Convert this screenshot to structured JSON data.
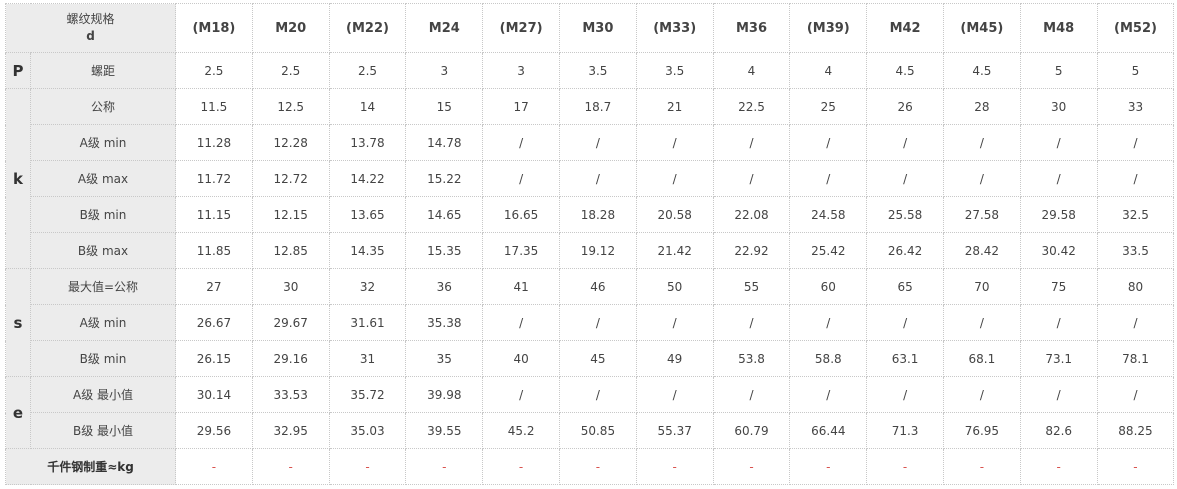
{
  "corner": {
    "line1": "螺纹规格",
    "line2": "d"
  },
  "sizes": [
    "(M18)",
    "M20",
    "(M22)",
    "M24",
    "(M27)",
    "M30",
    "(M33)",
    "M36",
    "(M39)",
    "M42",
    "(M45)",
    "M48",
    "(M52)"
  ],
  "groups": {
    "P": {
      "label": "P",
      "rows": [
        {
          "label": "螺距",
          "values": [
            "2.5",
            "2.5",
            "2.5",
            "3",
            "3",
            "3.5",
            "3.5",
            "4",
            "4",
            "4.5",
            "4.5",
            "5",
            "5"
          ]
        }
      ]
    },
    "k": {
      "label": "k",
      "rows": [
        {
          "label": "公称",
          "values": [
            "11.5",
            "12.5",
            "14",
            "15",
            "17",
            "18.7",
            "21",
            "22.5",
            "25",
            "26",
            "28",
            "30",
            "33"
          ]
        },
        {
          "label": "A级 min",
          "values": [
            "11.28",
            "12.28",
            "13.78",
            "14.78",
            "/",
            "/",
            "/",
            "/",
            "/",
            "/",
            "/",
            "/",
            "/"
          ]
        },
        {
          "label": "A级 max",
          "values": [
            "11.72",
            "12.72",
            "14.22",
            "15.22",
            "/",
            "/",
            "/",
            "/",
            "/",
            "/",
            "/",
            "/",
            "/"
          ]
        },
        {
          "label": "B级 min",
          "values": [
            "11.15",
            "12.15",
            "13.65",
            "14.65",
            "16.65",
            "18.28",
            "20.58",
            "22.08",
            "24.58",
            "25.58",
            "27.58",
            "29.58",
            "32.5"
          ]
        },
        {
          "label": "B级 max",
          "values": [
            "11.85",
            "12.85",
            "14.35",
            "15.35",
            "17.35",
            "19.12",
            "21.42",
            "22.92",
            "25.42",
            "26.42",
            "28.42",
            "30.42",
            "33.5"
          ]
        }
      ]
    },
    "s": {
      "label": "s",
      "rows": [
        {
          "label": "最大值=公称",
          "values": [
            "27",
            "30",
            "32",
            "36",
            "41",
            "46",
            "50",
            "55",
            "60",
            "65",
            "70",
            "75",
            "80"
          ]
        },
        {
          "label": "A级 min",
          "values": [
            "26.67",
            "29.67",
            "31.61",
            "35.38",
            "/",
            "/",
            "/",
            "/",
            "/",
            "/",
            "/",
            "/",
            "/"
          ]
        },
        {
          "label": "B级 min",
          "values": [
            "26.15",
            "29.16",
            "31",
            "35",
            "40",
            "45",
            "49",
            "53.8",
            "58.8",
            "63.1",
            "68.1",
            "73.1",
            "78.1"
          ]
        }
      ]
    },
    "e": {
      "label": "e",
      "rows": [
        {
          "label": "A级 最小值",
          "values": [
            "30.14",
            "33.53",
            "35.72",
            "39.98",
            "/",
            "/",
            "/",
            "/",
            "/",
            "/",
            "/",
            "/",
            "/"
          ]
        },
        {
          "label": "B级 最小值",
          "values": [
            "29.56",
            "32.95",
            "35.03",
            "39.55",
            "45.2",
            "50.85",
            "55.37",
            "60.79",
            "66.44",
            "71.3",
            "76.95",
            "82.6",
            "88.25"
          ]
        }
      ]
    }
  },
  "weight": {
    "label": "千件钢制重≈kg",
    "values": [
      "-",
      "-",
      "-",
      "-",
      "-",
      "-",
      "-",
      "-",
      "-",
      "-",
      "-",
      "-",
      "-"
    ]
  },
  "colors": {
    "header_text": "#2d5f9e",
    "label_bg": "#ececec",
    "dash": "#d9534f",
    "border": "#c8c8c8"
  }
}
